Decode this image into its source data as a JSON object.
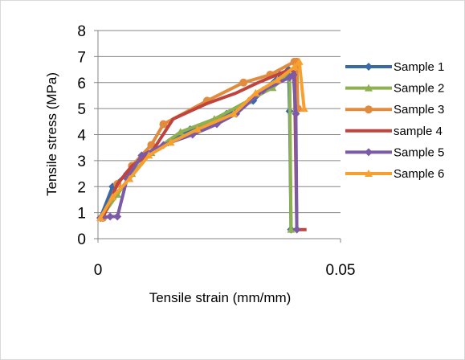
{
  "chart_data": {
    "type": "scatter",
    "title": "",
    "xlabel": "Tensile strain (mm/mm)",
    "ylabel": "Tensile stress (MPa)",
    "xlim": [
      0,
      0.05
    ],
    "ylim": [
      0,
      8
    ],
    "x_ticks": [
      "0",
      "0.05"
    ],
    "y_ticks": [
      "0",
      "1",
      "2",
      "3",
      "4",
      "5",
      "6",
      "7",
      "8"
    ],
    "grid": "horizontal",
    "legend": "right",
    "lines_connect_points": true,
    "series": [
      {
        "name": "Sample 1",
        "color": "#3a6aa6",
        "marker": "diamond",
        "x": [
          0.0005,
          0.003,
          0.006,
          0.0095,
          0.0145,
          0.019,
          0.0265,
          0.032,
          0.0375,
          0.0393,
          0.0395,
          0.0398
        ],
        "y": [
          0.8,
          2.0,
          2.5,
          3.2,
          3.7,
          4.2,
          4.8,
          5.3,
          6.3,
          6.5,
          4.9,
          0.35
        ]
      },
      {
        "name": "Sample 2",
        "color": "#8db050",
        "marker": "triangle",
        "x": [
          0.001,
          0.004,
          0.007,
          0.011,
          0.017,
          0.024,
          0.031,
          0.036,
          0.0385,
          0.0395,
          0.0398
        ],
        "y": [
          0.9,
          1.7,
          2.5,
          3.3,
          4.1,
          4.6,
          5.3,
          5.8,
          6.2,
          6.3,
          0.35
        ]
      },
      {
        "name": "Sample 3",
        "color": "#e08b3e",
        "marker": "circle",
        "x": [
          0.001,
          0.004,
          0.007,
          0.011,
          0.0135,
          0.0225,
          0.03,
          0.0355,
          0.0405,
          0.041,
          0.0412
        ],
        "y": [
          0.8,
          2.1,
          2.8,
          3.6,
          4.4,
          5.3,
          6.0,
          6.3,
          6.8,
          6.8,
          5.0
        ]
      },
      {
        "name": "sample 4",
        "color": "#c0443e",
        "marker": "none",
        "x": [
          0.001,
          0.004,
          0.007,
          0.011,
          0.0155,
          0.0225,
          0.0285,
          0.033,
          0.0395,
          0.0405,
          0.041,
          0.0418,
          0.043
        ],
        "y": [
          0.8,
          2.1,
          2.8,
          3.3,
          4.6,
          5.2,
          5.6,
          6.0,
          6.5,
          6.4,
          0.35,
          0.35,
          0.35
        ]
      },
      {
        "name": "Sample 5",
        "color": "#7d5aa6",
        "marker": "diamond",
        "x": [
          0.0005,
          0.0025,
          0.004,
          0.006,
          0.009,
          0.0135,
          0.0195,
          0.0245,
          0.0285,
          0.034,
          0.0395,
          0.0403,
          0.0408,
          0.041
        ],
        "y": [
          0.8,
          0.85,
          0.85,
          2.3,
          3.2,
          3.6,
          4.0,
          4.4,
          4.8,
          5.7,
          6.2,
          6.3,
          4.8,
          0.35
        ]
      },
      {
        "name": "Sample 6",
        "color": "#f7a030",
        "marker": "triangle",
        "x": [
          0.0005,
          0.003,
          0.0065,
          0.0105,
          0.015,
          0.0205,
          0.028,
          0.0325,
          0.037,
          0.0405,
          0.0415,
          0.0425
        ],
        "y": [
          0.8,
          1.6,
          2.3,
          3.2,
          3.7,
          4.2,
          4.8,
          5.6,
          6.1,
          6.6,
          6.8,
          5.0
        ]
      }
    ]
  }
}
